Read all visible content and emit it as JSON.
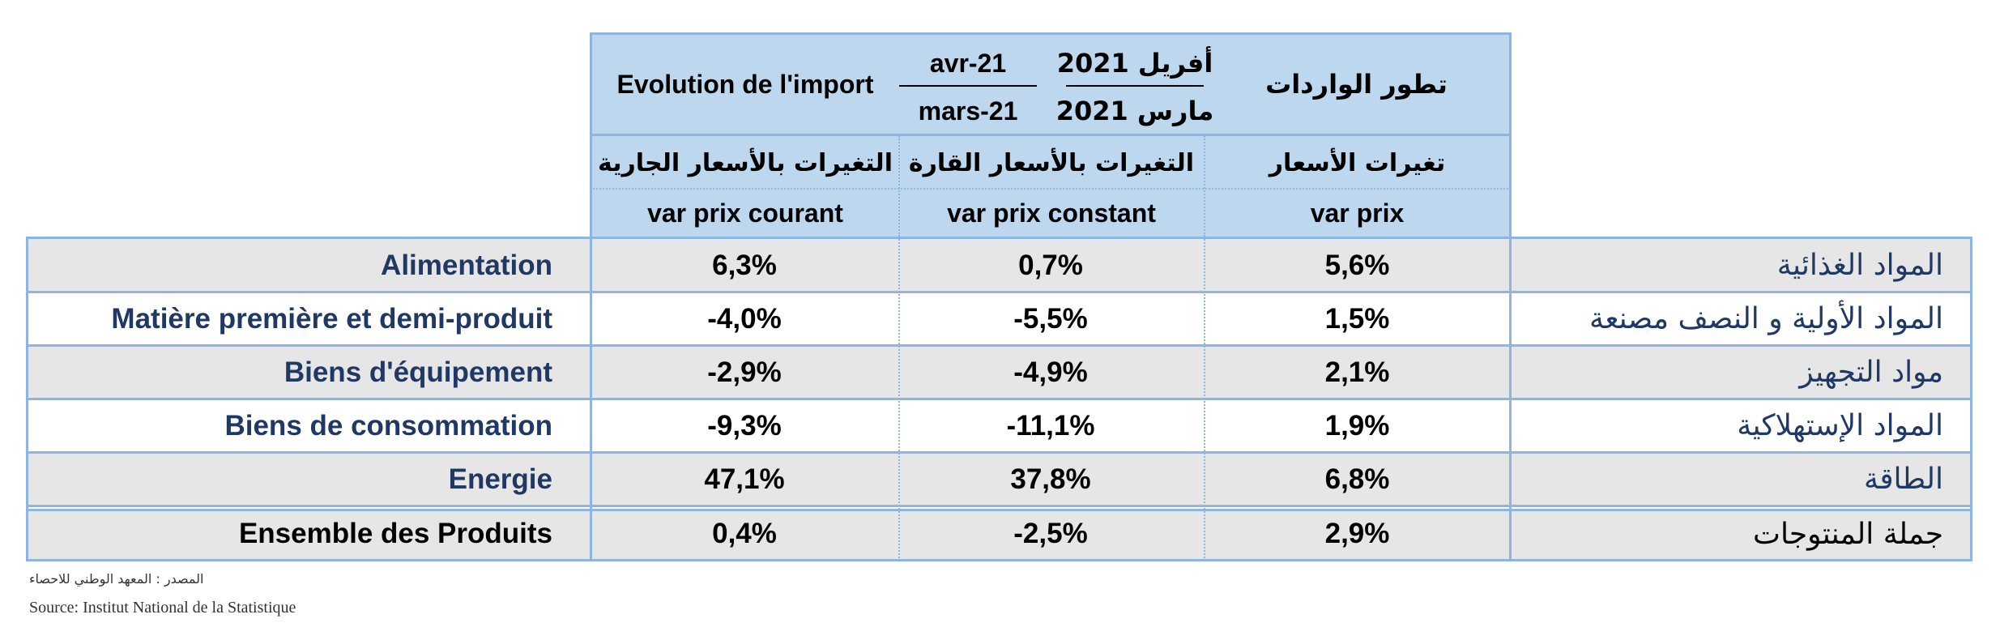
{
  "header": {
    "title_fr": "Evolution de l'import",
    "period_fr_top": "avr-21",
    "period_fr_bottom": "mars-21",
    "period_ar_top": "أفريل 2021",
    "period_ar_bottom": "مارس 2021",
    "title_ar": "تطور الواردات"
  },
  "columns": [
    {
      "label_ar": "التغيرات بالأسعار الجارية",
      "label_fr": "var prix courant"
    },
    {
      "label_ar": "التغيرات بالأسعار القارة",
      "label_fr": "var prix constant"
    },
    {
      "label_ar": "تغيرات  الأسعار",
      "label_fr": "var prix"
    }
  ],
  "rows": [
    {
      "fr": "Alimentation",
      "courant": "6,3%",
      "constant": "0,7%",
      "prix": "5,6%",
      "ar": "المواد  الغذائية"
    },
    {
      "fr": "Matière première et demi-produit",
      "courant": "-4,0%",
      "constant": "-5,5%",
      "prix": "1,5%",
      "ar": "المواد الأولية و النصف مصنعة"
    },
    {
      "fr": "Biens d'équipement",
      "courant": "-2,9%",
      "constant": "-4,9%",
      "prix": "2,1%",
      "ar": "مواد التجهيز"
    },
    {
      "fr": "Biens de consommation",
      "courant": "-9,3%",
      "constant": "-11,1%",
      "prix": "1,9%",
      "ar": "المواد الإستهلاكية"
    },
    {
      "fr": "Energie",
      "courant": "47,1%",
      "constant": "37,8%",
      "prix": "6,8%",
      "ar": "الطاقة"
    }
  ],
  "total": {
    "fr": "Ensemble des Produits",
    "courant": "0,4%",
    "constant": "-2,5%",
    "prix": "2,9%",
    "ar": "جملة المنتوجات"
  },
  "footer": {
    "source_ar": "المصدر : المعهد الوطني للاحصاء",
    "source_fr": "Source: Institut National de la Statistique"
  },
  "colors": {
    "header_bg": "#bdd7ee",
    "border": "#8eb4e3",
    "label_text": "#1f3864",
    "row_grey": "#e6e6e6"
  }
}
